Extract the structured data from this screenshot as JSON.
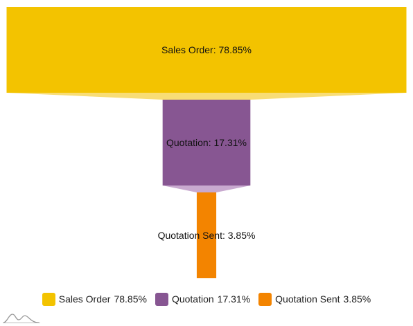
{
  "chart_data": {
    "type": "funnel",
    "categories": [
      "Sales Order",
      "Quotation",
      "Quotation Sent"
    ],
    "values": [
      78.85,
      17.31,
      3.85
    ],
    "labels": [
      "Sales Order: 78.85%",
      "Quotation: 17.31%",
      "Quotation Sent: 3.85%"
    ],
    "value_labels": [
      "78.85%",
      "17.31%",
      "3.85%"
    ],
    "colors": [
      "#f3c300",
      "#875692",
      "#f38400"
    ],
    "connector_colors": [
      "#f8dd76",
      "#c8a9cf"
    ],
    "legend_position": "bottom"
  }
}
